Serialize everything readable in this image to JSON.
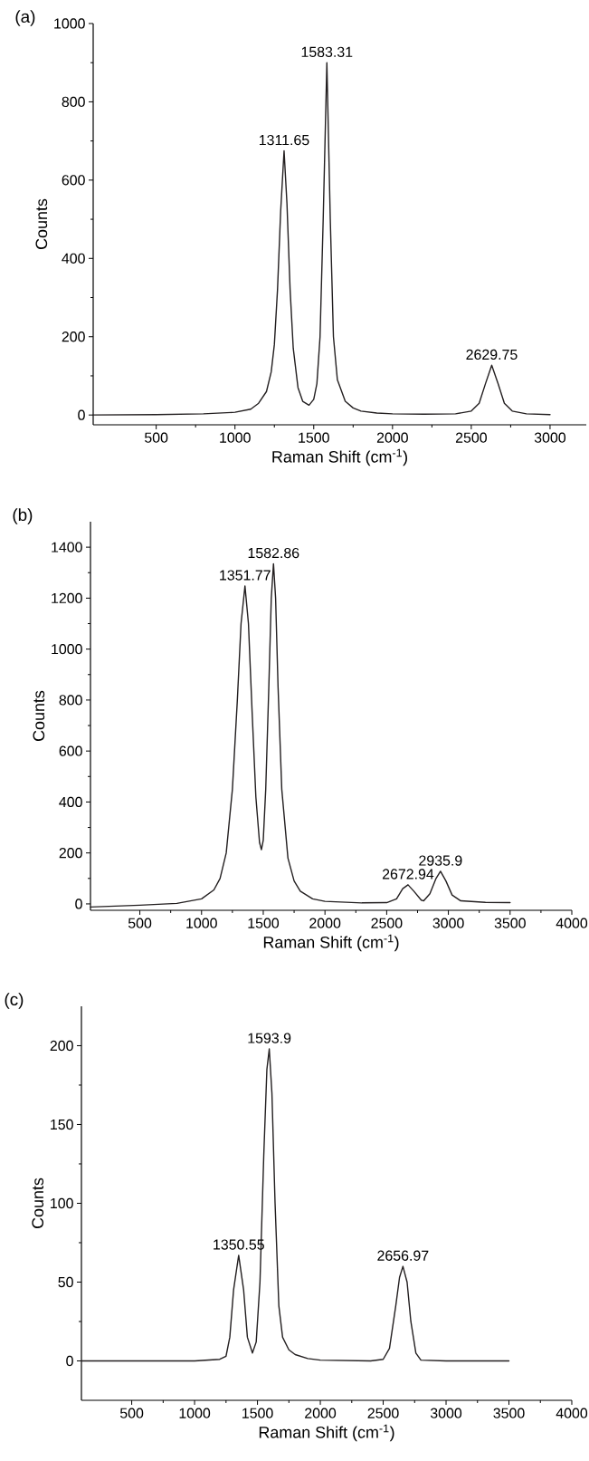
{
  "chart_data": [
    {
      "type": "line",
      "title": "(a)",
      "xlabel": "Raman Shift (cm$^{-1}$)",
      "ylabel": "Counts",
      "color": "#231f20",
      "xlim": [
        100,
        3230
      ],
      "ylim": [
        -25,
        1000
      ],
      "xticks": [
        500,
        1000,
        1500,
        2000,
        2500,
        3000
      ],
      "yticks": [
        0,
        200,
        400,
        600,
        800,
        1000
      ],
      "x": [
        100,
        500,
        800,
        1000,
        1100,
        1150,
        1200,
        1230,
        1250,
        1270,
        1290,
        1311.65,
        1330,
        1350,
        1370,
        1400,
        1430,
        1470,
        1500,
        1520,
        1540,
        1560,
        1583.31,
        1605,
        1625,
        1650,
        1700,
        1750,
        1800,
        1900,
        2000,
        2200,
        2400,
        2500,
        2550,
        2590,
        2629.75,
        2670,
        2710,
        2760,
        2850,
        3000
      ],
      "values": [
        0,
        1,
        3,
        7,
        15,
        30,
        60,
        110,
        180,
        320,
        520,
        675,
        540,
        320,
        170,
        70,
        35,
        25,
        40,
        80,
        200,
        500,
        900,
        500,
        200,
        90,
        35,
        18,
        10,
        5,
        3,
        2,
        3,
        10,
        30,
        80,
        127,
        80,
        30,
        10,
        3,
        1
      ],
      "annotations": [
        {
          "text": "1311.65",
          "x": 1311.65,
          "y": 675
        },
        {
          "text": "1583.31",
          "x": 1583.31,
          "y": 900
        },
        {
          "text": "2629.75",
          "x": 2629.75,
          "y": 127
        }
      ]
    },
    {
      "type": "line",
      "title": "(b)",
      "xlabel": "Raman Shift (cm$^{-1}$)",
      "ylabel": "Counts",
      "color": "#231f20",
      "xlim": [
        100,
        4000
      ],
      "ylim": [
        -25,
        1500
      ],
      "xticks": [
        500,
        1000,
        1500,
        2000,
        2500,
        3000,
        3500,
        4000
      ],
      "yticks": [
        0,
        200,
        400,
        600,
        800,
        1000,
        1200,
        1400
      ],
      "x": [
        100,
        500,
        800,
        1000,
        1100,
        1150,
        1200,
        1250,
        1290,
        1320,
        1351.77,
        1380,
        1410,
        1440,
        1470,
        1485,
        1500,
        1520,
        1545,
        1565,
        1582.86,
        1600,
        1620,
        1650,
        1700,
        1750,
        1800,
        1900,
        2000,
        2300,
        2500,
        2580,
        2630,
        2672.94,
        2720,
        2780,
        2800,
        2850,
        2900,
        2935.9,
        2980,
        3030,
        3100,
        3300,
        3500
      ],
      "values": [
        -12,
        -5,
        2,
        20,
        55,
        100,
        200,
        450,
        800,
        1100,
        1248,
        1100,
        750,
        420,
        240,
        213,
        250,
        450,
        850,
        1200,
        1335,
        1200,
        850,
        450,
        180,
        90,
        50,
        20,
        10,
        4,
        5,
        20,
        60,
        75,
        50,
        15,
        12,
        40,
        100,
        128,
        90,
        35,
        12,
        6,
        5
      ],
      "annotations": [
        {
          "text": "1351.77",
          "x": 1351.77,
          "y": 1248
        },
        {
          "text": "1582.86",
          "x": 1582.86,
          "y": 1335
        },
        {
          "text": "2672.94",
          "x": 2672.94,
          "y": 75
        },
        {
          "text": "2935.9",
          "x": 2935.9,
          "y": 128
        }
      ]
    },
    {
      "type": "line",
      "title": "(c)",
      "xlabel": "Raman Shift (cm$^{-1}$)",
      "ylabel": "Counts",
      "color": "#231f20",
      "xlim": [
        100,
        4000
      ],
      "ylim": [
        -25,
        225
      ],
      "xticks": [
        500,
        1000,
        1500,
        2000,
        2500,
        3000,
        3500,
        4000
      ],
      "yticks": [
        0,
        50,
        100,
        150,
        200
      ],
      "x": [
        100,
        1000,
        1200,
        1250,
        1280,
        1310,
        1350.55,
        1390,
        1420,
        1460,
        1490,
        1520,
        1550,
        1575,
        1593.9,
        1615,
        1640,
        1670,
        1700,
        1750,
        1800,
        1900,
        2000,
        2400,
        2500,
        2550,
        2600,
        2630,
        2656.97,
        2690,
        2720,
        2760,
        2800,
        3000,
        3500
      ],
      "values": [
        0,
        0,
        1,
        3,
        15,
        45,
        67,
        45,
        15,
        5,
        12,
        50,
        130,
        185,
        198,
        170,
        100,
        35,
        15,
        7,
        4,
        1.5,
        0.5,
        0,
        1,
        8,
        35,
        53,
        60,
        50,
        25,
        5,
        0.5,
        0,
        0
      ],
      "annotations": [
        {
          "text": "1350.55",
          "x": 1350.55,
          "y": 67
        },
        {
          "text": "1593.9",
          "x": 1593.9,
          "y": 198
        },
        {
          "text": "2656.97",
          "x": 2656.97,
          "y": 60
        }
      ]
    }
  ]
}
